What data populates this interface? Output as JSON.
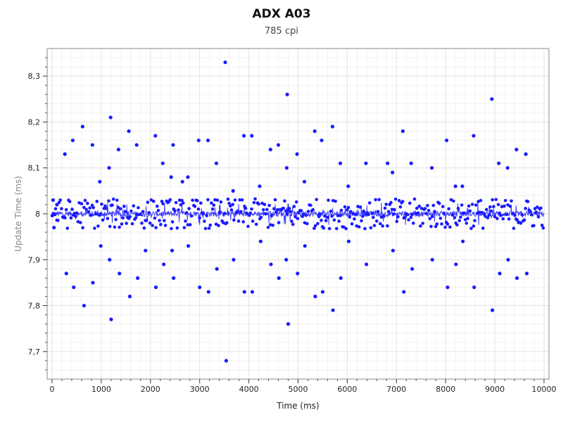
{
  "chart_data": {
    "type": "scatter",
    "title": "ADX A03",
    "subtitle": "785 cpi",
    "xlabel": "Time (ms)",
    "ylabel": "Update Time (ms)",
    "xlim": [
      -100,
      10100
    ],
    "ylim": [
      7.64,
      8.36
    ],
    "xticks": [
      0,
      1000,
      2000,
      3000,
      4000,
      5000,
      6000,
      7000,
      8000,
      9000,
      10000
    ],
    "yticks": [
      7.7,
      7.8,
      7.9,
      8.0,
      8.1,
      8.2,
      8.3
    ],
    "ytick_labels": [
      "7,7",
      "7,8",
      "7,9",
      "8",
      "8,1",
      "8,2",
      "8,3"
    ],
    "grid": true,
    "series_color": "#1a1aff",
    "line_color": "#1a1aff",
    "outliers": [
      {
        "x": 20,
        "y": 8.03
      },
      {
        "x": 40,
        "y": 7.97
      },
      {
        "x": 100,
        "y": 8.02
      },
      {
        "x": 260,
        "y": 8.13
      },
      {
        "x": 290,
        "y": 7.87
      },
      {
        "x": 420,
        "y": 8.16
      },
      {
        "x": 440,
        "y": 7.84
      },
      {
        "x": 620,
        "y": 8.19
      },
      {
        "x": 650,
        "y": 7.8
      },
      {
        "x": 820,
        "y": 8.15
      },
      {
        "x": 830,
        "y": 7.85
      },
      {
        "x": 970,
        "y": 8.07
      },
      {
        "x": 990,
        "y": 7.93
      },
      {
        "x": 1160,
        "y": 8.1
      },
      {
        "x": 1170,
        "y": 7.9
      },
      {
        "x": 1190,
        "y": 8.21
      },
      {
        "x": 1200,
        "y": 7.77
      },
      {
        "x": 1350,
        "y": 8.14
      },
      {
        "x": 1370,
        "y": 7.87
      },
      {
        "x": 1560,
        "y": 8.18
      },
      {
        "x": 1580,
        "y": 7.82
      },
      {
        "x": 1720,
        "y": 8.15
      },
      {
        "x": 1740,
        "y": 7.86
      },
      {
        "x": 1900,
        "y": 7.92
      },
      {
        "x": 2100,
        "y": 8.17
      },
      {
        "x": 2110,
        "y": 7.84
      },
      {
        "x": 2250,
        "y": 8.11
      },
      {
        "x": 2270,
        "y": 7.89
      },
      {
        "x": 2420,
        "y": 8.08
      },
      {
        "x": 2440,
        "y": 7.92
      },
      {
        "x": 2460,
        "y": 8.15
      },
      {
        "x": 2470,
        "y": 7.86
      },
      {
        "x": 2650,
        "y": 8.07
      },
      {
        "x": 2760,
        "y": 8.08
      },
      {
        "x": 2770,
        "y": 7.93
      },
      {
        "x": 2980,
        "y": 8.16
      },
      {
        "x": 3000,
        "y": 7.84
      },
      {
        "x": 3170,
        "y": 8.16
      },
      {
        "x": 3180,
        "y": 7.83
      },
      {
        "x": 3340,
        "y": 8.11
      },
      {
        "x": 3350,
        "y": 7.88
      },
      {
        "x": 3520,
        "y": 8.33
      },
      {
        "x": 3540,
        "y": 7.68
      },
      {
        "x": 3680,
        "y": 8.05
      },
      {
        "x": 3690,
        "y": 7.9
      },
      {
        "x": 3900,
        "y": 8.17
      },
      {
        "x": 3910,
        "y": 7.83
      },
      {
        "x": 4060,
        "y": 8.17
      },
      {
        "x": 4070,
        "y": 7.83
      },
      {
        "x": 4220,
        "y": 8.06
      },
      {
        "x": 4240,
        "y": 7.94
      },
      {
        "x": 4440,
        "y": 8.14
      },
      {
        "x": 4450,
        "y": 7.89
      },
      {
        "x": 4600,
        "y": 8.15
      },
      {
        "x": 4610,
        "y": 7.86
      },
      {
        "x": 4780,
        "y": 8.26
      },
      {
        "x": 4800,
        "y": 7.76
      },
      {
        "x": 4770,
        "y": 8.1
      },
      {
        "x": 4760,
        "y": 7.9
      },
      {
        "x": 4980,
        "y": 8.13
      },
      {
        "x": 4990,
        "y": 7.87
      },
      {
        "x": 5130,
        "y": 8.07
      },
      {
        "x": 5140,
        "y": 7.93
      },
      {
        "x": 5340,
        "y": 8.18
      },
      {
        "x": 5350,
        "y": 7.82
      },
      {
        "x": 5480,
        "y": 8.16
      },
      {
        "x": 5500,
        "y": 7.83
      },
      {
        "x": 5700,
        "y": 8.19
      },
      {
        "x": 5710,
        "y": 7.79
      },
      {
        "x": 5860,
        "y": 8.11
      },
      {
        "x": 5870,
        "y": 7.86
      },
      {
        "x": 6020,
        "y": 8.06
      },
      {
        "x": 6030,
        "y": 7.94
      },
      {
        "x": 6380,
        "y": 8.11
      },
      {
        "x": 6390,
        "y": 7.89
      },
      {
        "x": 6820,
        "y": 8.11
      },
      {
        "x": 6920,
        "y": 8.09
      },
      {
        "x": 6930,
        "y": 7.92
      },
      {
        "x": 7130,
        "y": 8.18
      },
      {
        "x": 7150,
        "y": 7.83
      },
      {
        "x": 7300,
        "y": 8.11
      },
      {
        "x": 7320,
        "y": 7.88
      },
      {
        "x": 7720,
        "y": 8.1
      },
      {
        "x": 7730,
        "y": 7.9
      },
      {
        "x": 8020,
        "y": 8.16
      },
      {
        "x": 8040,
        "y": 7.84
      },
      {
        "x": 8200,
        "y": 8.06
      },
      {
        "x": 8210,
        "y": 7.89
      },
      {
        "x": 8340,
        "y": 8.06
      },
      {
        "x": 8350,
        "y": 7.94
      },
      {
        "x": 8570,
        "y": 8.17
      },
      {
        "x": 8580,
        "y": 7.84
      },
      {
        "x": 8940,
        "y": 8.25
      },
      {
        "x": 8950,
        "y": 7.79
      },
      {
        "x": 9080,
        "y": 8.11
      },
      {
        "x": 9100,
        "y": 7.87
      },
      {
        "x": 9260,
        "y": 8.1
      },
      {
        "x": 9270,
        "y": 7.9
      },
      {
        "x": 9440,
        "y": 8.14
      },
      {
        "x": 9450,
        "y": 7.86
      },
      {
        "x": 9630,
        "y": 8.13
      },
      {
        "x": 9650,
        "y": 7.87
      }
    ]
  }
}
